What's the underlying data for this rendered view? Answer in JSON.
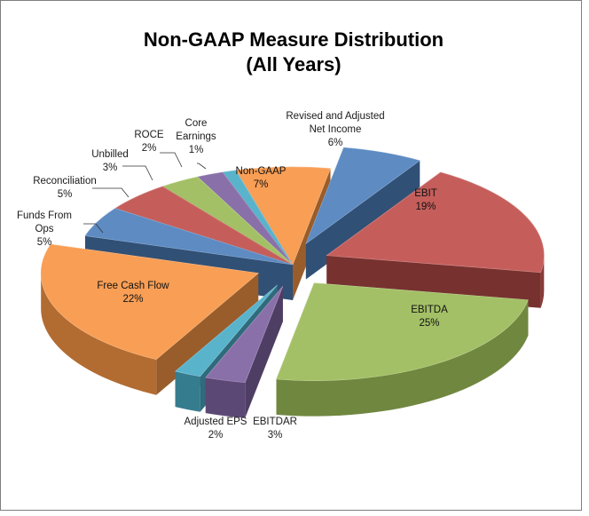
{
  "chart_data": {
    "type": "pie",
    "title": "Non-GAAP Measure Distribution",
    "subtitle": "(All Years)",
    "slices": [
      {
        "label_lines": [
          "Revised and Adjusted",
          "Net Income"
        ],
        "value_label": "6%",
        "value": 6,
        "color": "#4f81bd",
        "explode": 1
      },
      {
        "label_lines": [
          "EBIT"
        ],
        "value_label": "19%",
        "value": 19,
        "color": "#c0504d",
        "explode": 1
      },
      {
        "label_lines": [
          "EBITDA"
        ],
        "value_label": "25%",
        "value": 25,
        "color": "#9bbb59",
        "explode": 1
      },
      {
        "label_lines": [
          "EBITDAR"
        ],
        "value_label": "3%",
        "value": 3,
        "color": "#8064a2",
        "explode": 1
      },
      {
        "label_lines": [
          "Adjusted EPS"
        ],
        "value_label": "2%",
        "value": 2,
        "color": "#4bacc6",
        "explode": 1
      },
      {
        "label_lines": [
          "Free Cash Flow"
        ],
        "value_label": "22%",
        "value": 22,
        "color": "#f79646",
        "explode": 1
      },
      {
        "label_lines": [
          "Funds From",
          "Ops"
        ],
        "value_label": "5%",
        "value": 5,
        "color": "#4f81bd",
        "explode": 0
      },
      {
        "label_lines": [
          "Reconciliation"
        ],
        "value_label": "5%",
        "value": 5,
        "color": "#c0504d",
        "explode": 0
      },
      {
        "label_lines": [
          "Unbilled"
        ],
        "value_label": "3%",
        "value": 3,
        "color": "#9bbb59",
        "explode": 0
      },
      {
        "label_lines": [
          "ROCE"
        ],
        "value_label": "2%",
        "value": 2,
        "color": "#8064a2",
        "explode": 0
      },
      {
        "label_lines": [
          "Core",
          "Earnings"
        ],
        "value_label": "1%",
        "value": 1,
        "color": "#4bacc6",
        "explode": 0
      },
      {
        "label_lines": [
          "Non-GAAP"
        ],
        "value_label": "7%",
        "value": 7,
        "color": "#f79646",
        "explode": 0
      }
    ]
  }
}
